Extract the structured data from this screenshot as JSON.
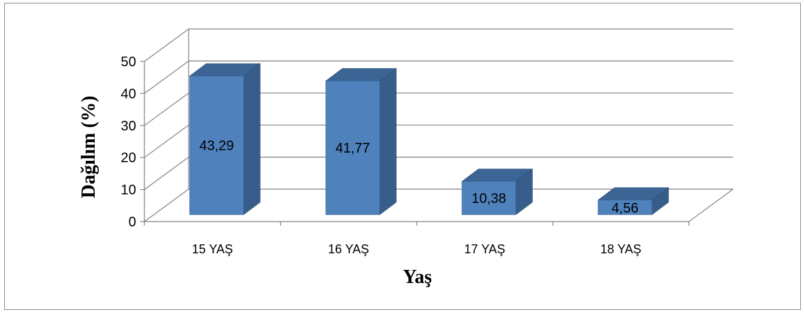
{
  "chart_data": {
    "type": "bar",
    "categories": [
      "15 YAŞ",
      "16 YAŞ",
      "17 YAŞ",
      "18 YAŞ"
    ],
    "values": [
      43.29,
      41.77,
      10.38,
      4.56
    ],
    "data_labels": [
      "43,29",
      "41,77",
      "10,38",
      "4,56"
    ],
    "xlabel": "Yaş",
    "ylabel": "Dağılım (%)",
    "ylim": [
      0,
      50
    ],
    "yticks": [
      0,
      10,
      20,
      30,
      40,
      50
    ],
    "grid": true,
    "three_d": true,
    "colors": {
      "front": "#4f81bd",
      "top": "#3c6596",
      "side": "#385d8a",
      "grid": "#808080"
    }
  }
}
